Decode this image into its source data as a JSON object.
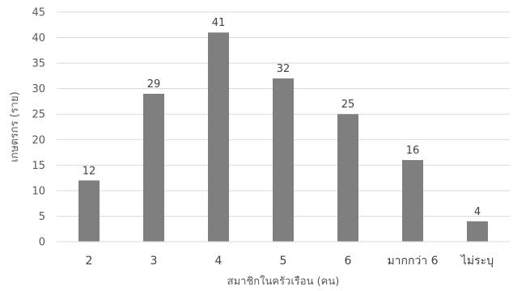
{
  "chart_data": {
    "type": "bar",
    "title": "",
    "xlabel": "สมาชิกในครัวเรือน (คน)",
    "ylabel": "เกษตรกร (ราย)",
    "categories": [
      "2",
      "3",
      "4",
      "5",
      "6",
      "มากกว่า 6",
      "ไม่ระบุ"
    ],
    "values": [
      12,
      29,
      41,
      32,
      25,
      16,
      4
    ],
    "ylim": [
      0,
      45
    ],
    "yticks": [
      0,
      5,
      10,
      15,
      20,
      25,
      30,
      35,
      40,
      45
    ],
    "grid": true,
    "legend": "none",
    "bar_color": "#7f7f7f",
    "grid_color": "#d9d9d9",
    "axis_color": "#d9d9d9"
  }
}
